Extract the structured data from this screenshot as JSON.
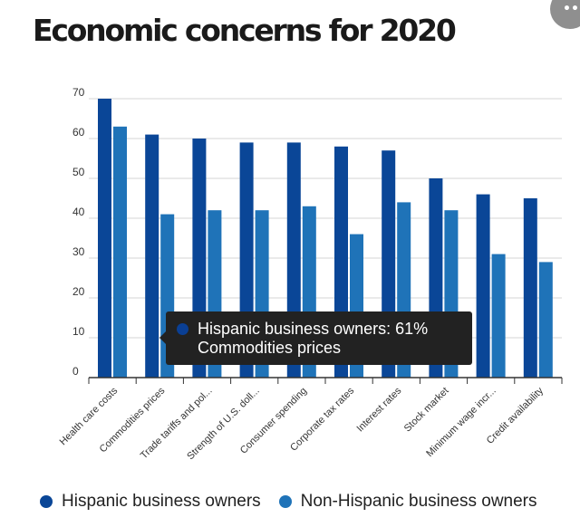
{
  "title": "Economic concerns for 2020",
  "more_button": "•••",
  "colors": {
    "hispanic": "#0a4697",
    "non_hispanic": "#1f73b8",
    "grid": "#d6d6d6",
    "axis": "#333333"
  },
  "tooltip": {
    "series_line": "Hispanic business owners: 61%",
    "category_line": "Commodities prices"
  },
  "legend": {
    "items": [
      "Hispanic business owners",
      "Non-Hispanic business owners"
    ]
  },
  "chart_data": {
    "type": "bar",
    "title": "Economic concerns for 2020",
    "xlabel": "",
    "ylabel": "",
    "ylim": [
      0,
      70
    ],
    "yticks": [
      0,
      10,
      20,
      30,
      40,
      50,
      60,
      70
    ],
    "grid": true,
    "legend_position": "bottom",
    "categories": [
      "Health care costs",
      "Commodities prices",
      "Trade tariffs and pol...",
      "Strength of U.S. doll...",
      "Consumer spending",
      "Corporate tax rates",
      "Interest rates",
      "Stock market",
      "Minimum wage incr...",
      "Credit availability"
    ],
    "series": [
      {
        "name": "Hispanic business owners",
        "values": [
          70,
          61,
          60,
          59,
          59,
          58,
          57,
          50,
          46,
          45
        ]
      },
      {
        "name": "Non-Hispanic business owners",
        "values": [
          63,
          41,
          42,
          42,
          43,
          36,
          44,
          42,
          31,
          29
        ]
      }
    ]
  }
}
